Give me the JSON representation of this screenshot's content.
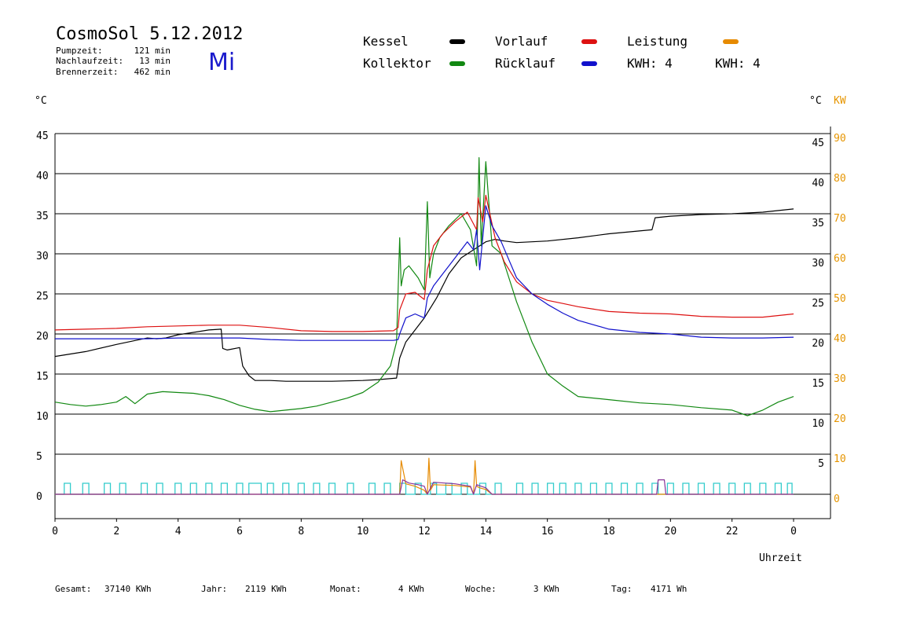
{
  "header": {
    "title": "CosmoSol 5.12.2012",
    "weekday": "Mi",
    "stats": [
      {
        "label": "Pumpzeit:",
        "value": "121 min"
      },
      {
        "label": "Nachlaufzeit:",
        "value": "13 min"
      },
      {
        "label": "Brennerzeit:",
        "value": "462 min"
      }
    ]
  },
  "legend": {
    "kessel": "Kessel",
    "kollektor": "Kollektor",
    "vorlauf": "Vorlauf",
    "ruecklauf": "Rücklauf",
    "leistung": "Leistung",
    "kwh_orange": "KWH: 4",
    "kwh_purple": "KWH: 4"
  },
  "axes": {
    "left_unit": "°C",
    "right_unit": "°C",
    "right_unit_kw": "KW",
    "x_label": "Uhrzeit"
  },
  "footer": {
    "gesamt_label": "Gesamt:",
    "gesamt_value": "37140 KWh",
    "jahr_label": "Jahr:",
    "jahr_value": "2119 KWh",
    "monat_label": "Monat:",
    "monat_value": "4 KWh",
    "woche_label": "Woche:",
    "woche_value": "3 KWh",
    "tag_label": "Tag:",
    "tag_value": "4171 Wh"
  },
  "colors": {
    "kessel": "#000000",
    "kollektor": "#118811",
    "vorlauf": "#dd1111",
    "ruecklauf": "#1111cc",
    "leistung": "#e68a00",
    "kwh_purple": "#883399",
    "pump": "#33cccc"
  },
  "chart_data": {
    "type": "line",
    "x_ticks": [
      "0",
      "2",
      "4",
      "6",
      "8",
      "10",
      "12",
      "14",
      "16",
      "18",
      "20",
      "22",
      "0"
    ],
    "y_left_ticks": [
      "0",
      "5",
      "10",
      "15",
      "20",
      "25",
      "30",
      "35",
      "40",
      "45"
    ],
    "y_right_ticks": [
      "20",
      "25",
      "30",
      "35",
      "40",
      "45"
    ],
    "y_right_lower_ticks": [
      "15",
      "10",
      "5"
    ],
    "y_kw_ticks": [
      "0",
      "10",
      "20",
      "30",
      "40",
      "50",
      "60",
      "70",
      "80",
      "90"
    ],
    "xlim": [
      0,
      24
    ],
    "ylim": [
      -2,
      48
    ],
    "grid": true,
    "series": [
      {
        "key": "kessel",
        "x": [
          0,
          1,
          2,
          3,
          3.3,
          3.6,
          4,
          5,
          5.4,
          5.45,
          5.6,
          6,
          6.1,
          6.3,
          6.5,
          7,
          7.5,
          8,
          9,
          10,
          10.5,
          11.1,
          11.2,
          11.4,
          11.7,
          12,
          12.4,
          12.8,
          13.2,
          13.6,
          14,
          14.3,
          14.6,
          15,
          15.5,
          16,
          17,
          18,
          19.4,
          19.5,
          20,
          21,
          22,
          23,
          24
        ],
        "y": [
          17.2,
          17.8,
          18.7,
          19.5,
          19.4,
          19.5,
          19.9,
          20.5,
          20.6,
          18.2,
          18.0,
          18.3,
          16,
          14.8,
          14.2,
          14.2,
          14.1,
          14.1,
          14.1,
          14.2,
          14.3,
          14.5,
          17,
          19,
          20.5,
          22,
          24.5,
          27.5,
          29.5,
          30.5,
          31.5,
          31.8,
          31.6,
          31.4,
          31.5,
          31.6,
          32,
          32.5,
          33,
          34.5,
          34.7,
          34.9,
          35,
          35.2,
          35.6
        ]
      },
      {
        "key": "kollektor",
        "x": [
          0,
          0.5,
          1,
          1.5,
          2,
          2.3,
          2.6,
          3,
          3.5,
          4,
          4.5,
          5,
          5.5,
          6,
          6.5,
          7,
          7.5,
          8,
          8.5,
          9,
          9.5,
          10,
          10.5,
          10.9,
          11.1,
          11.2,
          11.25,
          11.35,
          11.5,
          11.8,
          12,
          12.1,
          12.18,
          12.3,
          12.5,
          12.8,
          13.2,
          13.5,
          13.7,
          13.78,
          13.85,
          14,
          14.2,
          14.5,
          15,
          15.5,
          16,
          16.5,
          17,
          18,
          19,
          20,
          21,
          22,
          22.5,
          23,
          23.5,
          24
        ],
        "y": [
          11.5,
          11.2,
          11,
          11.2,
          11.5,
          12.2,
          11.3,
          12.5,
          12.8,
          12.7,
          12.6,
          12.3,
          11.8,
          11.1,
          10.6,
          10.3,
          10.5,
          10.7,
          11,
          11.5,
          12,
          12.7,
          14,
          16,
          19,
          32,
          26,
          28,
          28.5,
          27,
          25.5,
          36.5,
          27,
          30,
          32,
          33.5,
          35,
          33,
          28.5,
          42,
          31,
          41.5,
          31,
          30,
          24,
          19,
          15,
          13.5,
          12.2,
          11.8,
          11.4,
          11.2,
          10.8,
          10.5,
          9.8,
          10.5,
          11.5,
          12.2
        ]
      },
      {
        "key": "vorlauf",
        "x": [
          0,
          1,
          2,
          3,
          4,
          5,
          6,
          7,
          8,
          9,
          10,
          11,
          11.15,
          11.2,
          11.4,
          11.7,
          12,
          12.1,
          12.3,
          12.6,
          13,
          13.4,
          13.7,
          13.75,
          13.9,
          14,
          14.3,
          14.6,
          15,
          15.5,
          16,
          16.5,
          17,
          17.5,
          18,
          19,
          20,
          21,
          22,
          23,
          24
        ],
        "y": [
          20.5,
          20.6,
          20.7,
          20.9,
          21,
          21.1,
          21.1,
          20.8,
          20.4,
          20.3,
          20.3,
          20.4,
          20.8,
          23,
          25,
          25.2,
          24.3,
          28,
          31,
          32.5,
          34,
          35.2,
          33,
          37,
          34,
          37.3,
          32,
          29,
          26.5,
          25,
          24.2,
          23.8,
          23.4,
          23.1,
          22.8,
          22.6,
          22.5,
          22.2,
          22.1,
          22.1,
          22.5
        ]
      },
      {
        "key": "ruecklauf",
        "x": [
          0,
          1,
          2,
          3,
          4,
          5,
          6,
          7,
          8,
          9,
          10,
          11,
          11.15,
          11.2,
          11.4,
          11.7,
          12,
          12.1,
          12.3,
          12.6,
          13,
          13.4,
          13.6,
          13.7,
          13.8,
          14,
          14.2,
          14.5,
          15,
          15.5,
          16,
          16.5,
          17,
          18,
          19,
          20,
          21,
          22,
          23,
          24
        ],
        "y": [
          19.4,
          19.4,
          19.4,
          19.4,
          19.5,
          19.5,
          19.5,
          19.3,
          19.2,
          19.2,
          19.2,
          19.2,
          19.3,
          20,
          22,
          22.5,
          22,
          24.5,
          26,
          27.5,
          29.5,
          31.5,
          30.5,
          33,
          28,
          36,
          33.5,
          31.5,
          27,
          25,
          23.7,
          22.6,
          21.7,
          20.6,
          20.2,
          20,
          19.6,
          19.5,
          19.5,
          19.6
        ]
      },
      {
        "key": "leistung",
        "x": [
          0,
          11.1,
          11.2,
          11.25,
          11.4,
          11.7,
          12,
          12.1,
          12.15,
          12.2,
          12.3,
          13,
          13.5,
          13.6,
          13.65,
          13.7,
          13.8,
          14,
          14.2,
          24
        ],
        "y": [
          0,
          0,
          0,
          4.2,
          1.3,
          1.0,
          0.5,
          0,
          4.5,
          0.5,
          1.2,
          1.1,
          0.9,
          0,
          4.2,
          1.0,
          0.8,
          0.6,
          0,
          0
        ]
      },
      {
        "key": "kwh_purple",
        "x": [
          0,
          11.2,
          11.3,
          11.5,
          11.8,
          12,
          12.1,
          12.3,
          13,
          13.5,
          13.6,
          13.7,
          14,
          14.2,
          19.55,
          19.6,
          19.8,
          19.85,
          24
        ],
        "y": [
          0,
          0,
          1.8,
          1.4,
          1.2,
          1.0,
          0,
          1.5,
          1.3,
          1.0,
          0,
          1.2,
          0.8,
          0,
          0,
          1.8,
          1.8,
          0,
          0
        ]
      }
    ],
    "pump_pulses": [
      [
        0.3,
        0.5
      ],
      [
        0.9,
        1.1
      ],
      [
        1.6,
        1.8
      ],
      [
        2.1,
        2.3
      ],
      [
        2.8,
        3.0
      ],
      [
        3.3,
        3.5
      ],
      [
        3.9,
        4.1
      ],
      [
        4.4,
        4.6
      ],
      [
        4.9,
        5.1
      ],
      [
        5.4,
        5.6
      ],
      [
        5.9,
        6.1
      ],
      [
        6.3,
        6.7
      ],
      [
        6.9,
        7.1
      ],
      [
        7.4,
        7.6
      ],
      [
        7.9,
        8.1
      ],
      [
        8.4,
        8.6
      ],
      [
        8.9,
        9.1
      ],
      [
        9.5,
        9.7
      ],
      [
        10.2,
        10.4
      ],
      [
        10.7,
        10.9
      ],
      [
        11.2,
        11.4
      ],
      [
        11.7,
        11.9
      ],
      [
        12.2,
        12.4
      ],
      [
        12.7,
        12.9
      ],
      [
        13.2,
        13.4
      ],
      [
        13.8,
        14.0
      ],
      [
        14.3,
        14.5
      ],
      [
        15.0,
        15.2
      ],
      [
        15.5,
        15.7
      ],
      [
        16.0,
        16.2
      ],
      [
        16.4,
        16.6
      ],
      [
        16.9,
        17.1
      ],
      [
        17.4,
        17.6
      ],
      [
        17.9,
        18.1
      ],
      [
        18.4,
        18.6
      ],
      [
        18.9,
        19.1
      ],
      [
        19.4,
        19.6
      ],
      [
        19.9,
        20.1
      ],
      [
        20.4,
        20.6
      ],
      [
        20.9,
        21.1
      ],
      [
        21.4,
        21.6
      ],
      [
        21.9,
        22.1
      ],
      [
        22.4,
        22.6
      ],
      [
        22.9,
        23.1
      ],
      [
        23.4,
        23.6
      ],
      [
        23.8,
        23.95
      ]
    ]
  }
}
